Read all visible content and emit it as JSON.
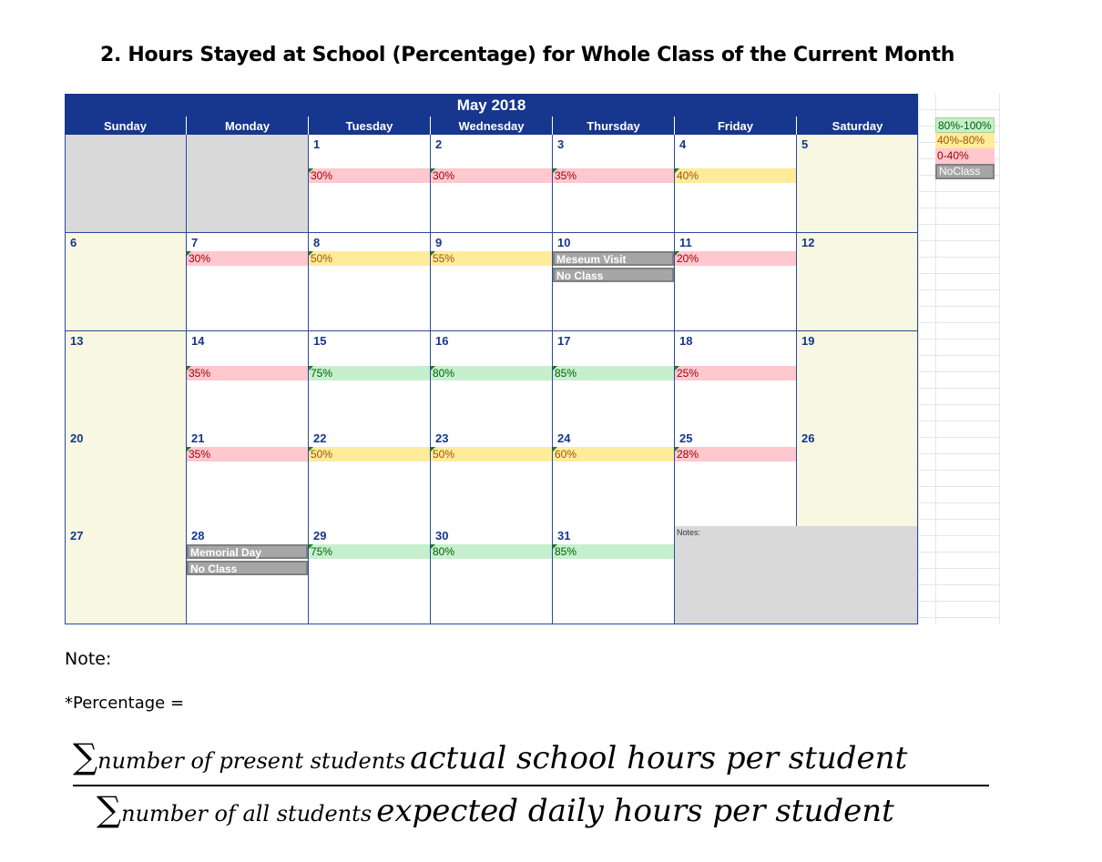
{
  "title": "2.   Hours Stayed at School (Percentage) for Whole Class of the Current Month",
  "calendar": {
    "month": "May 2018",
    "weekdays": [
      "Sunday",
      "Monday",
      "Tuesday",
      "Wednesday",
      "Thursday",
      "Friday",
      "Saturday"
    ],
    "notes_label": "Notes:"
  },
  "legend": {
    "high": "80%-100%",
    "mid": "40%-80%",
    "low": "0-40%",
    "none": "NoClass"
  },
  "days": {
    "d1": {
      "num": "1",
      "pct": "30%"
    },
    "d2": {
      "num": "2",
      "pct": "30%"
    },
    "d3": {
      "num": "3",
      "pct": "35%"
    },
    "d4": {
      "num": "4",
      "pct": "40%"
    },
    "d5": {
      "num": "5"
    },
    "d6": {
      "num": "6"
    },
    "d7": {
      "num": "7",
      "pct": "30%"
    },
    "d8": {
      "num": "8",
      "pct": "50%"
    },
    "d9": {
      "num": "9",
      "pct": "55%"
    },
    "d10": {
      "num": "10",
      "event": "Meseum Visit",
      "status": "No Class"
    },
    "d11": {
      "num": "11",
      "pct": "20%"
    },
    "d12": {
      "num": "12"
    },
    "d13": {
      "num": "13"
    },
    "d14": {
      "num": "14",
      "pct": "35%"
    },
    "d15": {
      "num": "15",
      "pct": "75%"
    },
    "d16": {
      "num": "16",
      "pct": "80%"
    },
    "d17": {
      "num": "17",
      "pct": "85%"
    },
    "d18": {
      "num": "18",
      "pct": "25%"
    },
    "d19": {
      "num": "19"
    },
    "d20": {
      "num": "20"
    },
    "d21": {
      "num": "21",
      "pct": "35%"
    },
    "d22": {
      "num": "22",
      "pct": "50%"
    },
    "d23": {
      "num": "23",
      "pct": "50%"
    },
    "d24": {
      "num": "24",
      "pct": "60%"
    },
    "d25": {
      "num": "25",
      "pct": "28%"
    },
    "d26": {
      "num": "26"
    },
    "d27": {
      "num": "27"
    },
    "d28": {
      "num": "28",
      "event": "Memorial Day",
      "status": " No Class"
    },
    "d29": {
      "num": "29",
      "pct": "75%"
    },
    "d30": {
      "num": "30",
      "pct": "80%"
    },
    "d31": {
      "num": "31",
      "pct": "85%"
    }
  },
  "note": {
    "heading": "Note:",
    "definition": "*Percentage =",
    "numerator_sub": "number of present students",
    "numerator_expr": "actual school hours per student",
    "denominator_sub": "number of all students",
    "denominator_expr": "expected daily hours per student",
    "sigma": "∑"
  },
  "colors": {
    "header_blue": "#17368d",
    "weekend_fill": "#f8f7e2",
    "empty_fill": "#d9d9d9",
    "high_fill": "#c6efce",
    "mid_fill": "#ffeb9c",
    "low_fill": "#ffc7ce",
    "noclass_fill": "#a6a6a6"
  }
}
